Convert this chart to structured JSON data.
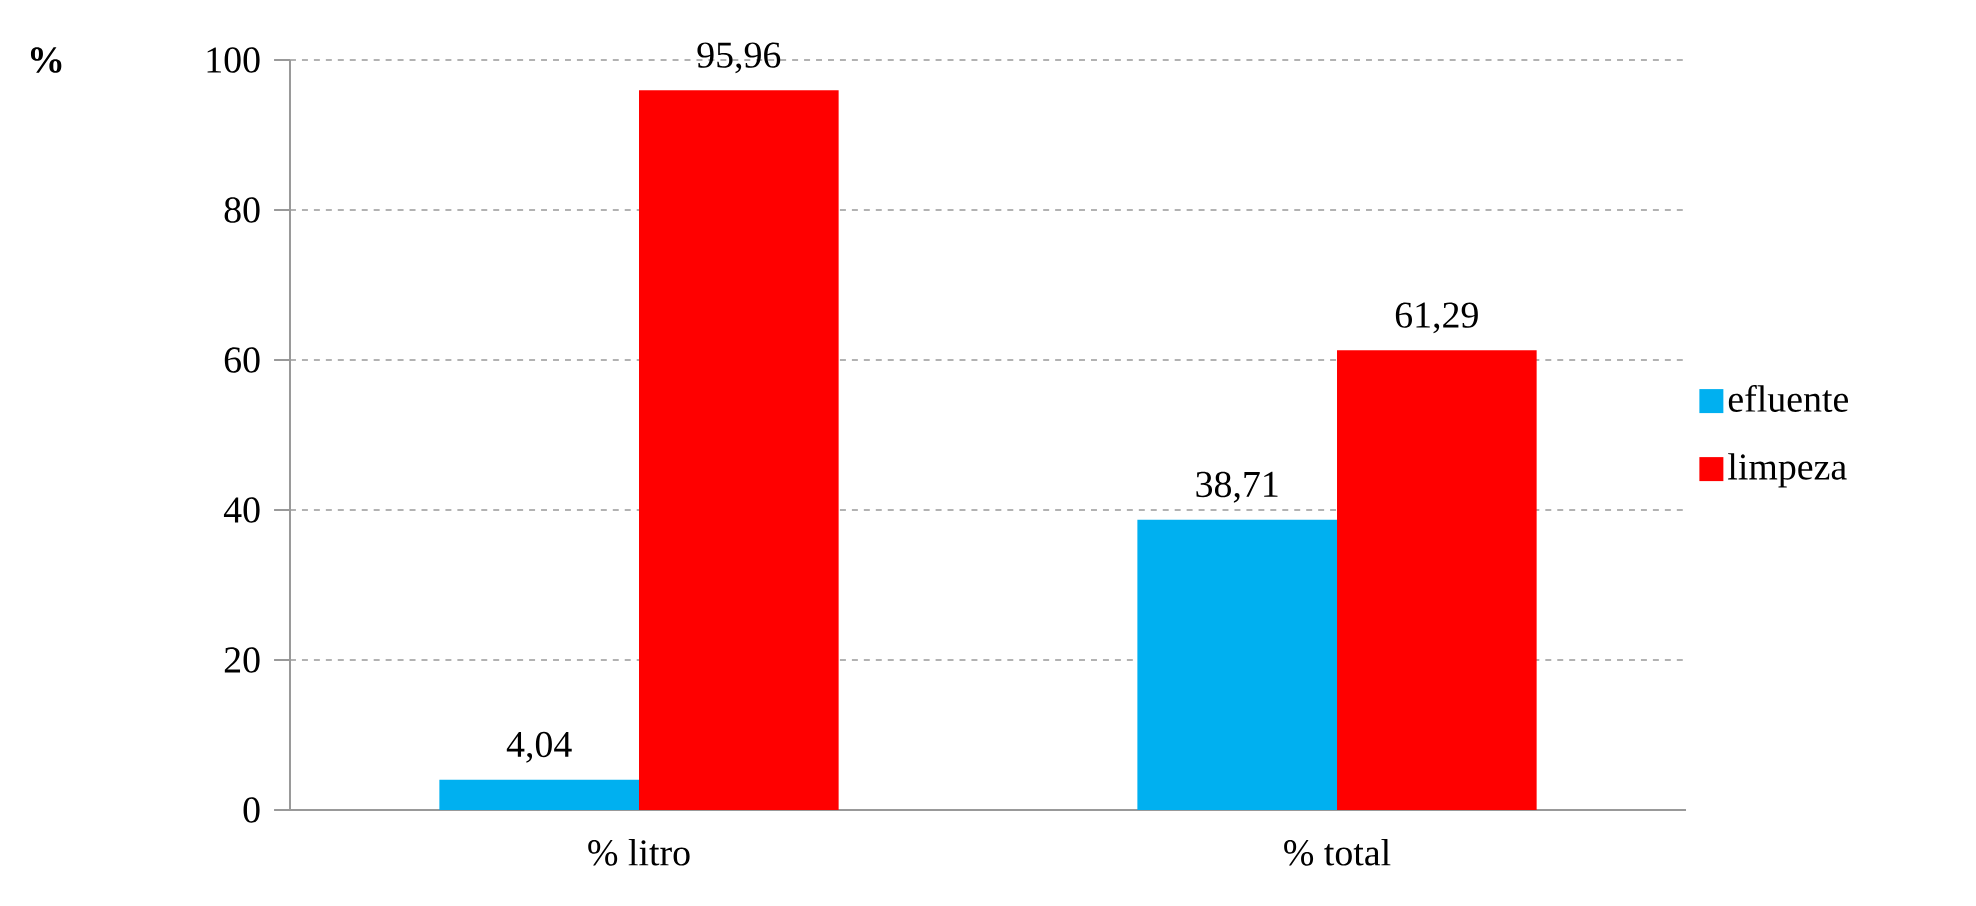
{
  "chart_data": {
    "type": "bar",
    "ylabel": "%",
    "categories": [
      "% litro",
      "% total"
    ],
    "series": [
      {
        "name": "efluente",
        "color": "#00b0f0",
        "values": [
          4.04,
          38.71
        ],
        "value_labels": [
          "4,04",
          "38,71"
        ]
      },
      {
        "name": "limpeza",
        "color": "#ff0000",
        "values": [
          95.96,
          61.29
        ],
        "value_labels": [
          "95,96",
          "61,29"
        ]
      }
    ],
    "ylim": [
      0,
      100
    ],
    "yticks": [
      0,
      20,
      40,
      60,
      80,
      100
    ],
    "grid": "y",
    "legend": "right"
  }
}
